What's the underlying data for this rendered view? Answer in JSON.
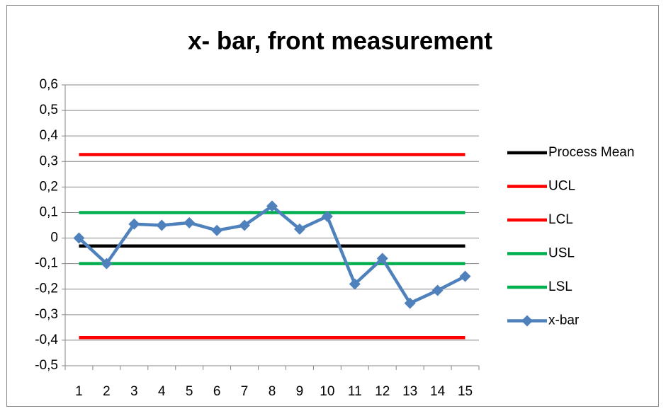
{
  "chart_data": {
    "type": "line",
    "title": "x- bar, front measurement",
    "categories": [
      "1",
      "2",
      "3",
      "4",
      "5",
      "6",
      "7",
      "8",
      "9",
      "10",
      "11",
      "12",
      "13",
      "14",
      "15"
    ],
    "series": [
      {
        "name": "Process Mean",
        "color": "#000000",
        "values": [
          -0.031,
          -0.031,
          -0.031,
          -0.031,
          -0.031,
          -0.031,
          -0.031,
          -0.031,
          -0.031,
          -0.031,
          -0.031,
          -0.031,
          -0.031,
          -0.031,
          -0.031
        ]
      },
      {
        "name": "UCL",
        "color": "#ff0000",
        "values": [
          0.327,
          0.327,
          0.327,
          0.327,
          0.327,
          0.327,
          0.327,
          0.327,
          0.327,
          0.327,
          0.327,
          0.327,
          0.327,
          0.327,
          0.327
        ]
      },
      {
        "name": "LCL",
        "color": "#ff0000",
        "values": [
          -0.39,
          -0.39,
          -0.39,
          -0.39,
          -0.39,
          -0.39,
          -0.39,
          -0.39,
          -0.39,
          -0.39,
          -0.39,
          -0.39,
          -0.39,
          -0.39,
          -0.39
        ]
      },
      {
        "name": "USL",
        "color": "#00b050",
        "values": [
          0.1,
          0.1,
          0.1,
          0.1,
          0.1,
          0.1,
          0.1,
          0.1,
          0.1,
          0.1,
          0.1,
          0.1,
          0.1,
          0.1,
          0.1
        ]
      },
      {
        "name": "LSL",
        "color": "#00b050",
        "values": [
          -0.1,
          -0.1,
          -0.1,
          -0.1,
          -0.1,
          -0.1,
          -0.1,
          -0.1,
          -0.1,
          -0.1,
          -0.1,
          -0.1,
          -0.1,
          -0.1,
          -0.1
        ]
      },
      {
        "name": "x-bar",
        "color": "#4f81bd",
        "marker": "diamond",
        "values": [
          0,
          -0.1,
          0.055,
          0.05,
          0.06,
          0.03,
          0.05,
          0.125,
          0.035,
          0.085,
          -0.18,
          -0.08,
          -0.255,
          -0.205,
          -0.15
        ]
      }
    ],
    "ylim": [
      -0.5,
      0.6
    ],
    "yticks": [
      {
        "value": -0.5,
        "label": "-0,5"
      },
      {
        "value": -0.4,
        "label": "-0,4"
      },
      {
        "value": -0.3,
        "label": "-0,3"
      },
      {
        "value": -0.2,
        "label": "-0,2"
      },
      {
        "value": -0.1,
        "label": "-0,1"
      },
      0,
      {
        "value": 0.1,
        "label": "0,1"
      },
      {
        "value": 0.2,
        "label": "0,2"
      },
      {
        "value": 0.3,
        "label": "0,3"
      },
      {
        "value": 0.4,
        "label": "0,4"
      },
      {
        "value": 0.5,
        "label": "0,5"
      },
      {
        "value": 0.6,
        "label": "0,6"
      }
    ],
    "grid": true,
    "legend": "right"
  }
}
